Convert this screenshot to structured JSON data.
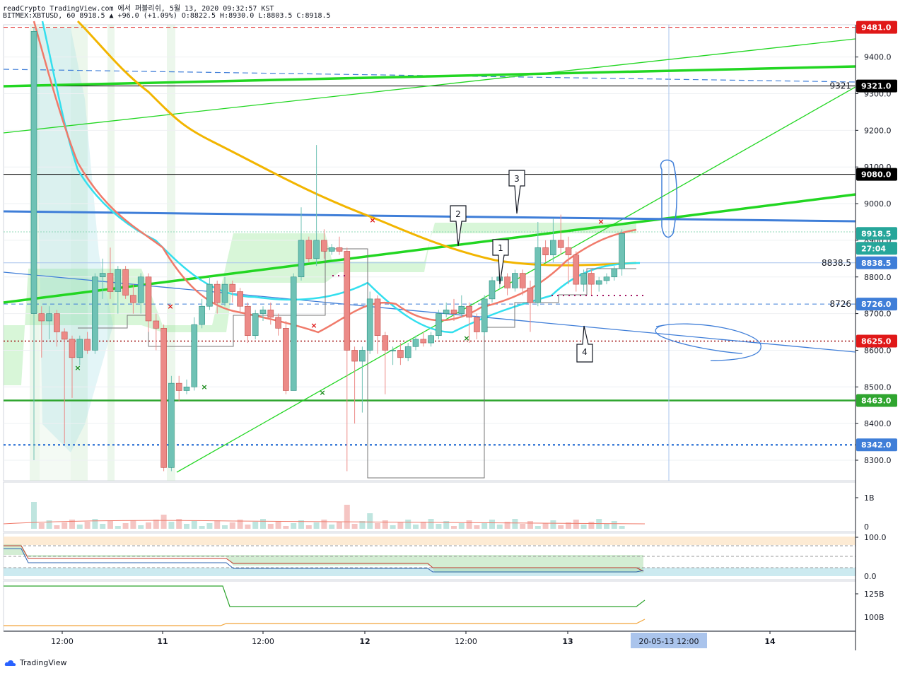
{
  "header": {
    "line1": "readCrypto TradingView.com 에서 퍼블리쉬, 5월 13, 2020 09:32:57 KST",
    "line2": "BITMEX:XBTUSD, 60 8918.5 ▲ +96.0 (+1.09%) O:8822.5 H:8930.0 L:8803.5 C:8918.5"
  },
  "footer": {
    "brand": "TradingView"
  },
  "colors": {
    "up": "#6fc2b5",
    "down": "#ec8a87",
    "green_line": "#22d622",
    "blue_line": "#3f7ed8",
    "orange": "#f2b500",
    "cyan": "#33dfee",
    "salmon": "#f07a6a",
    "black": "#000000",
    "red_tag": "#e01818",
    "teal_tag": "#26a69a",
    "blue_tag": "#3f7ed8",
    "green_tag": "#2fa52f"
  },
  "chart_data": [
    {
      "type": "candlestick",
      "symbol": "BITMEX:XBTUSD",
      "interval": "60",
      "last": 8918.5,
      "change": 96.0,
      "change_pct": 1.09,
      "ohlc_last": {
        "O": 8822.5,
        "H": 8930.0,
        "L": 8803.5,
        "C": 8918.5
      },
      "ylim": [
        8230,
        9490
      ],
      "y_ticks": [
        8300,
        8400,
        8500,
        8600,
        8700,
        8800,
        8900,
        9000,
        9100,
        9200,
        9300,
        9400
      ],
      "y_tick_labels": [
        "8300.0",
        "8400.0",
        "8500.0",
        "8600.0",
        "8700.0",
        "8800.0",
        "8900.0",
        "9000.0",
        "9100.0",
        "9200.0",
        "9300.0",
        "9400.0"
      ],
      "x_labels": [
        "12:00",
        "11",
        "12:00",
        "12",
        "12:00",
        "13",
        "14"
      ],
      "crosshair_label": "20-05-13   12:00",
      "price_tags": [
        {
          "label": "9481.0",
          "price": 9481,
          "color": "#e01818"
        },
        {
          "label": "9321.0",
          "price": 9321,
          "color": "#000000"
        },
        {
          "label": "9080.0",
          "price": 9080,
          "color": "#000000"
        },
        {
          "label": "8918.5",
          "price": 8918.5,
          "color": "#26a69a"
        },
        {
          "label": "27:04",
          "price": 8878,
          "color": "#26a69a"
        },
        {
          "label": "8838.5",
          "price": 8838.5,
          "color": "#3f7ed8"
        },
        {
          "label": "8726.0",
          "price": 8726,
          "color": "#3f7ed8"
        },
        {
          "label": "8625.0",
          "price": 8625,
          "color": "#e01818"
        },
        {
          "label": "8463.0",
          "price": 8463,
          "color": "#2fa52f"
        },
        {
          "label": "8342.0",
          "price": 8342,
          "color": "#3f7ed8"
        }
      ],
      "line_labels": [
        {
          "label": "9321",
          "price": 9321
        },
        {
          "label": "8838.5",
          "price": 8838.5
        },
        {
          "label": "8726",
          "price": 8726
        }
      ],
      "callouts": [
        "1",
        "2",
        "3",
        "4"
      ],
      "candles": [
        {
          "o": 8700,
          "c": 9470,
          "h": 9481,
          "l": 8300
        },
        {
          "o": 8700,
          "c": 8680,
          "h": 8720,
          "l": 8580
        },
        {
          "o": 8680,
          "c": 8700,
          "h": 8720,
          "l": 8630
        },
        {
          "o": 8700,
          "c": 8650,
          "h": 8710,
          "l": 8610
        },
        {
          "o": 8650,
          "c": 8630,
          "h": 8660,
          "l": 8345
        },
        {
          "o": 8630,
          "c": 8580,
          "h": 8640,
          "l": 8470
        },
        {
          "o": 8580,
          "c": 8630,
          "h": 8640,
          "l": 8560
        },
        {
          "o": 8630,
          "c": 8600,
          "h": 8650,
          "l": 8590
        },
        {
          "o": 8600,
          "c": 8800,
          "h": 8810,
          "l": 8590
        },
        {
          "o": 8800,
          "c": 8810,
          "h": 8850,
          "l": 8740
        },
        {
          "o": 8810,
          "c": 8760,
          "h": 8880,
          "l": 8740
        },
        {
          "o": 8760,
          "c": 8820,
          "h": 8830,
          "l": 8700
        },
        {
          "o": 8820,
          "c": 8750,
          "h": 8830,
          "l": 8740
        },
        {
          "o": 8750,
          "c": 8730,
          "h": 8780,
          "l": 8700
        },
        {
          "o": 8730,
          "c": 8800,
          "h": 8810,
          "l": 8700
        },
        {
          "o": 8800,
          "c": 8680,
          "h": 8810,
          "l": 8650
        },
        {
          "o": 8680,
          "c": 8660,
          "h": 8700,
          "l": 8600
        },
        {
          "o": 8660,
          "c": 8280,
          "h": 8670,
          "l": 8270
        },
        {
          "o": 8280,
          "c": 8510,
          "h": 8530,
          "l": 8270
        },
        {
          "o": 8510,
          "c": 8490,
          "h": 8530,
          "l": 8460
        },
        {
          "o": 8490,
          "c": 8500,
          "h": 8520,
          "l": 8480
        },
        {
          "o": 8500,
          "c": 8670,
          "h": 8690,
          "l": 8490
        },
        {
          "o": 8670,
          "c": 8720,
          "h": 8740,
          "l": 8660
        },
        {
          "o": 8720,
          "c": 8780,
          "h": 8800,
          "l": 8710
        },
        {
          "o": 8780,
          "c": 8730,
          "h": 8790,
          "l": 8700
        },
        {
          "o": 8730,
          "c": 8780,
          "h": 8800,
          "l": 8720
        },
        {
          "o": 8780,
          "c": 8760,
          "h": 8790,
          "l": 8730
        },
        {
          "o": 8760,
          "c": 8720,
          "h": 8770,
          "l": 8700
        },
        {
          "o": 8720,
          "c": 8640,
          "h": 8730,
          "l": 8620
        },
        {
          "o": 8640,
          "c": 8700,
          "h": 8710,
          "l": 8630
        },
        {
          "o": 8700,
          "c": 8710,
          "h": 8720,
          "l": 8680
        },
        {
          "o": 8710,
          "c": 8690,
          "h": 8730,
          "l": 8670
        },
        {
          "o": 8690,
          "c": 8660,
          "h": 8700,
          "l": 8640
        },
        {
          "o": 8660,
          "c": 8490,
          "h": 8680,
          "l": 8480
        },
        {
          "o": 8490,
          "c": 8800,
          "h": 8810,
          "l": 8490
        },
        {
          "o": 8800,
          "c": 8900,
          "h": 8990,
          "l": 8790
        },
        {
          "o": 8900,
          "c": 8850,
          "h": 8910,
          "l": 8840
        },
        {
          "o": 8850,
          "c": 8900,
          "h": 9160,
          "l": 8830
        },
        {
          "o": 8900,
          "c": 8870,
          "h": 8930,
          "l": 8850
        },
        {
          "o": 8870,
          "c": 8880,
          "h": 8890,
          "l": 8860
        },
        {
          "o": 8880,
          "c": 8870,
          "h": 8910,
          "l": 8860
        },
        {
          "o": 8870,
          "c": 8600,
          "h": 8880,
          "l": 8270
        },
        {
          "o": 8600,
          "c": 8570,
          "h": 8610,
          "l": 8400
        },
        {
          "o": 8570,
          "c": 8600,
          "h": 8610,
          "l": 8430
        },
        {
          "o": 8600,
          "c": 8740,
          "h": 8760,
          "l": 8590
        },
        {
          "o": 8740,
          "c": 8640,
          "h": 8750,
          "l": 8590
        },
        {
          "o": 8640,
          "c": 8600,
          "h": 8650,
          "l": 8480
        },
        {
          "o": 8600,
          "c": 8600,
          "h": 8610,
          "l": 8560
        },
        {
          "o": 8600,
          "c": 8580,
          "h": 8620,
          "l": 8560
        },
        {
          "o": 8580,
          "c": 8610,
          "h": 8620,
          "l": 8570
        },
        {
          "o": 8610,
          "c": 8630,
          "h": 8640,
          "l": 8600
        },
        {
          "o": 8630,
          "c": 8620,
          "h": 8650,
          "l": 8610
        },
        {
          "o": 8620,
          "c": 8640,
          "h": 8650,
          "l": 8610
        },
        {
          "o": 8640,
          "c": 8700,
          "h": 8710,
          "l": 8630
        },
        {
          "o": 8700,
          "c": 8710,
          "h": 8730,
          "l": 8690
        },
        {
          "o": 8710,
          "c": 8700,
          "h": 8740,
          "l": 8680
        },
        {
          "o": 8700,
          "c": 8720,
          "h": 8750,
          "l": 8690
        },
        {
          "o": 8720,
          "c": 8690,
          "h": 8730,
          "l": 8620
        },
        {
          "o": 8690,
          "c": 8650,
          "h": 8700,
          "l": 8630
        },
        {
          "o": 8650,
          "c": 8740,
          "h": 8750,
          "l": 8640
        },
        {
          "o": 8740,
          "c": 8790,
          "h": 8800,
          "l": 8730
        },
        {
          "o": 8790,
          "c": 8800,
          "h": 8810,
          "l": 8770
        },
        {
          "o": 8800,
          "c": 8770,
          "h": 8810,
          "l": 8750
        },
        {
          "o": 8770,
          "c": 8810,
          "h": 8820,
          "l": 8760
        },
        {
          "o": 8810,
          "c": 8770,
          "h": 8820,
          "l": 8750
        },
        {
          "o": 8770,
          "c": 8730,
          "h": 8790,
          "l": 8650
        },
        {
          "o": 8730,
          "c": 8880,
          "h": 8950,
          "l": 8720
        },
        {
          "o": 8880,
          "c": 8860,
          "h": 8900,
          "l": 8840
        },
        {
          "o": 8860,
          "c": 8900,
          "h": 8960,
          "l": 8840
        },
        {
          "o": 8900,
          "c": 8880,
          "h": 8970,
          "l": 8860
        },
        {
          "o": 8880,
          "c": 8860,
          "h": 8910,
          "l": 8780
        },
        {
          "o": 8860,
          "c": 8780,
          "h": 8870,
          "l": 8760
        },
        {
          "o": 8780,
          "c": 8810,
          "h": 8820,
          "l": 8760
        },
        {
          "o": 8810,
          "c": 8780,
          "h": 8820,
          "l": 8750
        },
        {
          "o": 8780,
          "c": 8790,
          "h": 8800,
          "l": 8760
        },
        {
          "o": 8790,
          "c": 8800,
          "h": 8810,
          "l": 8780
        },
        {
          "o": 8800,
          "c": 8822.5,
          "h": 8830,
          "l": 8790
        },
        {
          "o": 8822.5,
          "c": 8918.5,
          "h": 8930,
          "l": 8803.5
        }
      ]
    },
    {
      "type": "bar",
      "name": "volume",
      "y_tick_labels": [
        "1B",
        "0"
      ]
    },
    {
      "type": "line",
      "name": "oscillator",
      "y_tick_labels": [
        "100.0",
        "0.0"
      ]
    },
    {
      "type": "line",
      "name": "volume-average",
      "y_tick_labels": [
        "125B",
        "100B"
      ]
    }
  ]
}
